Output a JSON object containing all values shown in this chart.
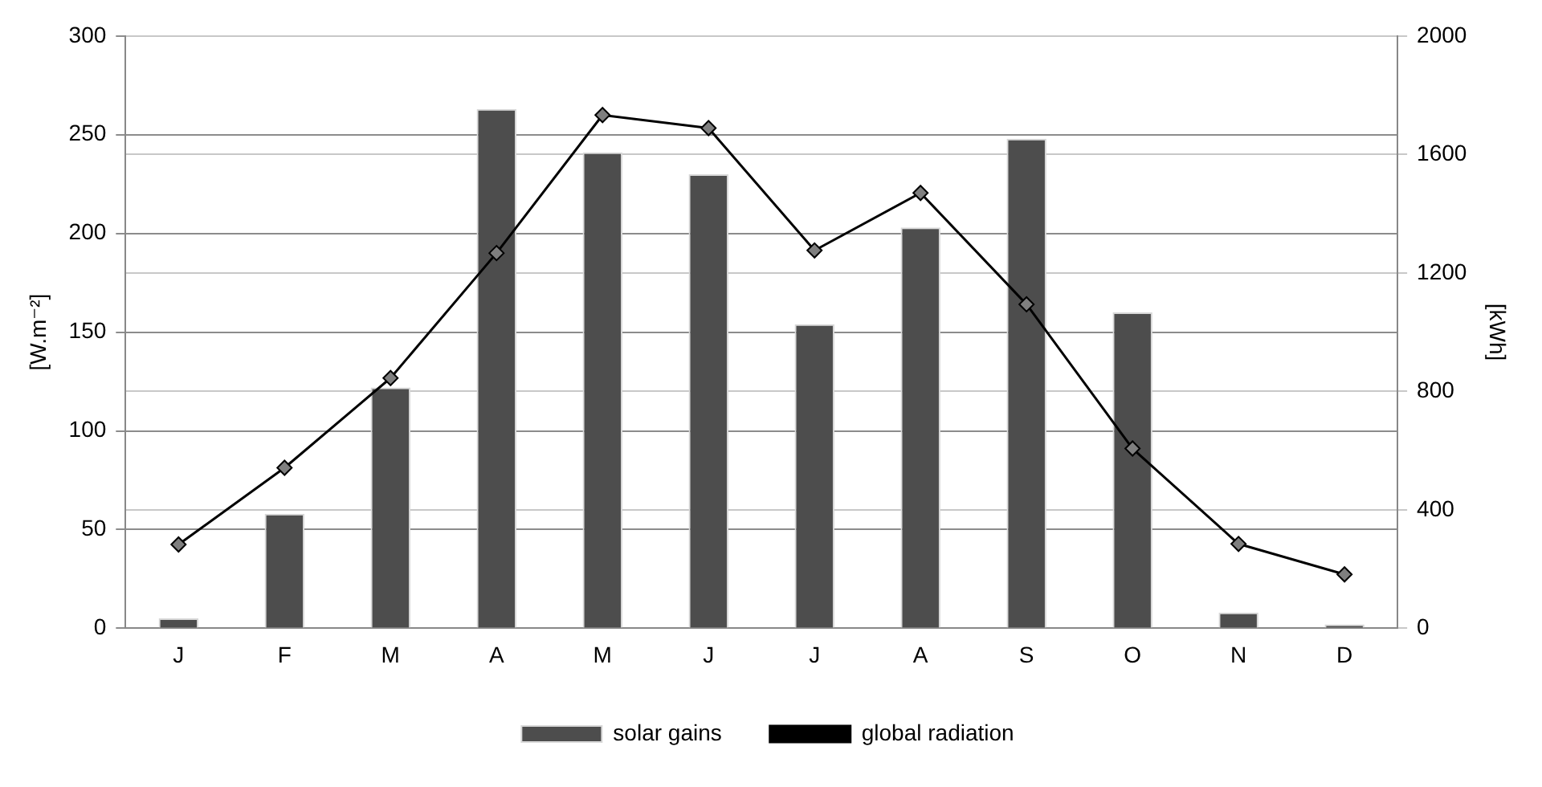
{
  "chart_data": {
    "type": "bar",
    "categories": [
      "J",
      "F",
      "M",
      "A",
      "M",
      "J",
      "J",
      "A",
      "S",
      "O",
      "N",
      "D"
    ],
    "series": [
      {
        "name": "solar gains",
        "color": "#4d4d4d",
        "values": [
          5,
          58,
          122,
          263,
          241,
          230,
          154,
          203,
          248,
          160,
          8,
          2
        ]
      },
      {
        "name": "global radiation",
        "type": "line",
        "axis": "y2",
        "color": "#000000",
        "values": [
          283,
          542,
          845,
          1267,
          1733,
          1689,
          1276,
          1470,
          1094,
          607,
          285,
          182
        ]
      }
    ],
    "ylabel": "[W.m⁻²]",
    "y2label": "[kWh]",
    "ylim": [
      0,
      300
    ],
    "yticks": [
      0,
      50,
      100,
      150,
      200,
      250,
      300
    ],
    "y2lim": [
      0,
      2000
    ],
    "y2ticks": [
      0,
      400,
      800,
      1200,
      1600,
      2000
    ],
    "grid": "y",
    "legend": "bottom",
    "marker": "diamond",
    "line_style": "solid"
  }
}
